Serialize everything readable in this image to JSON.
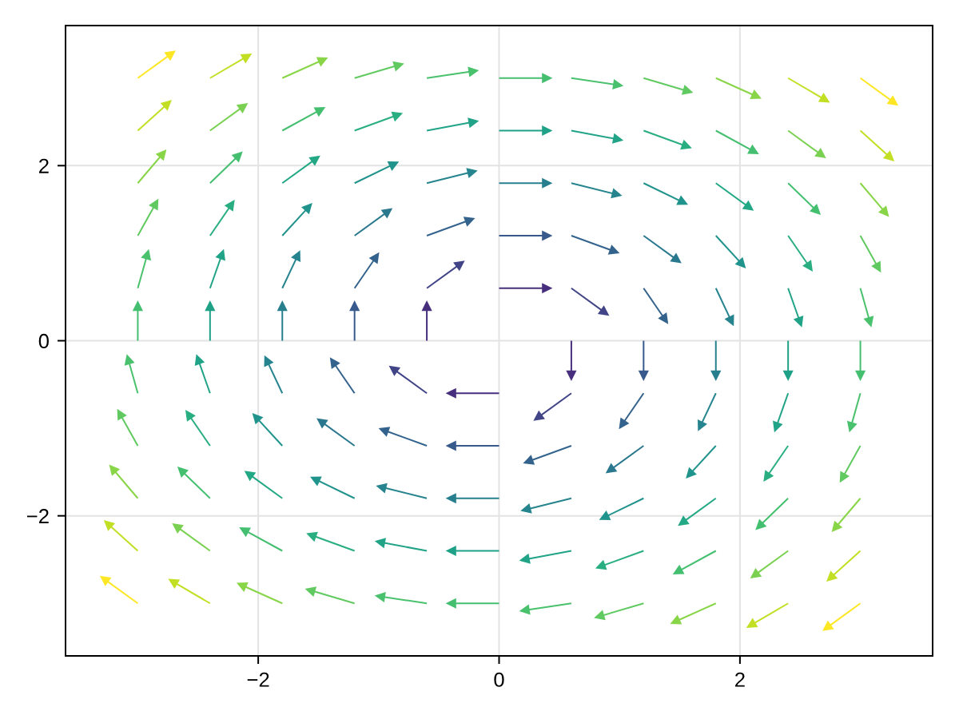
{
  "chart_data": {
    "type": "line",
    "xlim": [
      -3.6,
      3.6
    ],
    "ylim": [
      -3.6,
      3.6
    ],
    "xticks": [
      {
        "value": -2,
        "label": "−2"
      },
      0,
      2
    ],
    "yticks": [
      {
        "value": -2,
        "label": "−2"
      },
      0,
      2
    ],
    "grid": true,
    "marker": "triangle",
    "series": [
      {
        "x": [
          -3,
          -2.72
        ],
        "values": [
          3,
          3.28
        ],
        "color": "#fde725"
      },
      {
        "x": [
          -2.4,
          -2.09
        ],
        "values": [
          3,
          3.25
        ],
        "color": "#c2df23"
      },
      {
        "x": [
          -1.8,
          -1.46
        ],
        "values": [
          3,
          3.21
        ],
        "color": "#89d548"
      },
      {
        "x": [
          -1.2,
          -0.83
        ],
        "values": [
          3,
          3.15
        ],
        "color": "#60ca60"
      },
      {
        "x": [
          -0.6,
          -0.21
        ],
        "values": [
          3,
          3.08
        ],
        "color": "#4ac16d"
      },
      {
        "x": [
          0,
          0.4
        ],
        "values": [
          3,
          3
        ],
        "color": "#44bf70"
      },
      {
        "x": [
          0.6,
          0.99
        ],
        "values": [
          3,
          2.92
        ],
        "color": "#4ac16d"
      },
      {
        "x": [
          1.2,
          1.57
        ],
        "values": [
          3,
          2.85
        ],
        "color": "#60ca60"
      },
      {
        "x": [
          1.8,
          2.14
        ],
        "values": [
          3,
          2.79
        ],
        "color": "#89d548"
      },
      {
        "x": [
          2.4,
          2.71
        ],
        "values": [
          3,
          2.75
        ],
        "color": "#c2df23"
      },
      {
        "x": [
          3,
          3.28
        ],
        "values": [
          3,
          2.72
        ],
        "color": "#fde725"
      },
      {
        "x": [
          -3,
          -2.75
        ],
        "values": [
          2.4,
          2.71
        ],
        "color": "#c2df23"
      },
      {
        "x": [
          -2.4,
          -2.12
        ],
        "values": [
          2.4,
          2.68
        ],
        "color": "#7ad151"
      },
      {
        "x": [
          -1.8,
          -1.48
        ],
        "values": [
          2.4,
          2.64
        ],
        "color": "#44bf70"
      },
      {
        "x": [
          -1.2,
          -0.84
        ],
        "values": [
          2.4,
          2.58
        ],
        "color": "#28ae80"
      },
      {
        "x": [
          -0.6,
          -0.21
        ],
        "values": [
          2.4,
          2.5
        ],
        "color": "#20a386"
      },
      {
        "x": [
          0,
          0.4
        ],
        "values": [
          2.4,
          2.4
        ],
        "color": "#1fa187"
      },
      {
        "x": [
          0.6,
          0.99
        ],
        "values": [
          2.4,
          2.3
        ],
        "color": "#20a386"
      },
      {
        "x": [
          1.2,
          1.56
        ],
        "values": [
          2.4,
          2.22
        ],
        "color": "#28ae80"
      },
      {
        "x": [
          1.8,
          2.12
        ],
        "values": [
          2.4,
          2.16
        ],
        "color": "#44bf70"
      },
      {
        "x": [
          2.4,
          2.68
        ],
        "values": [
          2.4,
          2.12
        ],
        "color": "#7ad151"
      },
      {
        "x": [
          3,
          3.25
        ],
        "values": [
          2.4,
          2.09
        ],
        "color": "#c2df23"
      },
      {
        "x": [
          -3,
          -2.79
        ],
        "values": [
          1.8,
          2.14
        ],
        "color": "#89d548"
      },
      {
        "x": [
          -2.4,
          -2.16
        ],
        "values": [
          1.8,
          2.12
        ],
        "color": "#44bf70"
      },
      {
        "x": [
          -1.8,
          -1.52
        ],
        "values": [
          1.8,
          2.08
        ],
        "color": "#22a884"
      },
      {
        "x": [
          -1.2,
          -0.87
        ],
        "values": [
          1.8,
          2.02
        ],
        "color": "#20938c"
      },
      {
        "x": [
          -0.6,
          -0.22
        ],
        "values": [
          1.8,
          1.93
        ],
        "color": "#25848e"
      },
      {
        "x": [
          0,
          0.4
        ],
        "values": [
          1.8,
          1.8
        ],
        "color": "#277f8e"
      },
      {
        "x": [
          0.6,
          0.98
        ],
        "values": [
          1.8,
          1.67
        ],
        "color": "#25848e"
      },
      {
        "x": [
          1.2,
          1.53
        ],
        "values": [
          1.8,
          1.58
        ],
        "color": "#20938c"
      },
      {
        "x": [
          1.8,
          2.08
        ],
        "values": [
          1.8,
          1.52
        ],
        "color": "#22a884"
      },
      {
        "x": [
          2.4,
          2.64
        ],
        "values": [
          1.8,
          1.48
        ],
        "color": "#44bf70"
      },
      {
        "x": [
          3,
          3.21
        ],
        "values": [
          1.8,
          1.46
        ],
        "color": "#89d548"
      },
      {
        "x": [
          -3,
          -2.85
        ],
        "values": [
          1.2,
          1.57
        ],
        "color": "#60ca60"
      },
      {
        "x": [
          -2.4,
          -2.22
        ],
        "values": [
          1.2,
          1.56
        ],
        "color": "#28ae80"
      },
      {
        "x": [
          -1.8,
          -1.58
        ],
        "values": [
          1.2,
          1.53
        ],
        "color": "#20938c"
      },
      {
        "x": [
          -1.2,
          -0.92
        ],
        "values": [
          1.2,
          1.48
        ],
        "color": "#2a788e"
      },
      {
        "x": [
          -0.6,
          -0.24
        ],
        "values": [
          1.2,
          1.38
        ],
        "color": "#33638d"
      },
      {
        "x": [
          0,
          0.4
        ],
        "values": [
          1.2,
          1.2
        ],
        "color": "#38598c"
      },
      {
        "x": [
          0.6,
          0.96
        ],
        "values": [
          1.2,
          1.02
        ],
        "color": "#33638d"
      },
      {
        "x": [
          1.2,
          1.48
        ],
        "values": [
          1.2,
          0.92
        ],
        "color": "#2a788e"
      },
      {
        "x": [
          1.8,
          2.02
        ],
        "values": [
          1.2,
          0.87
        ],
        "color": "#20938c"
      },
      {
        "x": [
          2.4,
          2.58
        ],
        "values": [
          1.2,
          0.84
        ],
        "color": "#28ae80"
      },
      {
        "x": [
          3,
          3.15
        ],
        "values": [
          1.2,
          0.83
        ],
        "color": "#60ca60"
      },
      {
        "x": [
          -3,
          -2.92
        ],
        "values": [
          0.6,
          0.99
        ],
        "color": "#4ac16d"
      },
      {
        "x": [
          -2.4,
          -2.3
        ],
        "values": [
          0.6,
          0.99
        ],
        "color": "#20a386"
      },
      {
        "x": [
          -1.8,
          -1.67
        ],
        "values": [
          0.6,
          0.98
        ],
        "color": "#25848e"
      },
      {
        "x": [
          -1.2,
          -1.02
        ],
        "values": [
          0.6,
          0.96
        ],
        "color": "#33638d"
      },
      {
        "x": [
          -0.6,
          -0.32
        ],
        "values": [
          0.6,
          0.88
        ],
        "color": "#414487"
      },
      {
        "x": [
          0,
          0.4
        ],
        "values": [
          0.6,
          0.6
        ],
        "color": "#472f7d"
      },
      {
        "x": [
          0.6,
          0.88
        ],
        "values": [
          0.6,
          0.32
        ],
        "color": "#414487"
      },
      {
        "x": [
          1.2,
          1.38
        ],
        "values": [
          0.6,
          0.24
        ],
        "color": "#33638d"
      },
      {
        "x": [
          1.8,
          1.93
        ],
        "values": [
          0.6,
          0.22
        ],
        "color": "#25848e"
      },
      {
        "x": [
          2.4,
          2.5
        ],
        "values": [
          0.6,
          0.21
        ],
        "color": "#20a386"
      },
      {
        "x": [
          3,
          3.08
        ],
        "values": [
          0.6,
          0.21
        ],
        "color": "#4ac16d"
      },
      {
        "x": [
          -3,
          -3
        ],
        "values": [
          0,
          0.4
        ],
        "color": "#44bf70"
      },
      {
        "x": [
          -2.4,
          -2.4
        ],
        "values": [
          0,
          0.4
        ],
        "color": "#1fa187"
      },
      {
        "x": [
          -1.8,
          -1.8
        ],
        "values": [
          0,
          0.4
        ],
        "color": "#277f8e"
      },
      {
        "x": [
          -1.2,
          -1.2
        ],
        "values": [
          0,
          0.4
        ],
        "color": "#38598c"
      },
      {
        "x": [
          -0.6,
          -0.6
        ],
        "values": [
          0,
          0.4
        ],
        "color": "#472f7d"
      },
      {
        "x": [
          0.6,
          0.6
        ],
        "values": [
          0,
          -0.4
        ],
        "color": "#472f7d"
      },
      {
        "x": [
          1.2,
          1.2
        ],
        "values": [
          0,
          -0.4
        ],
        "color": "#38598c"
      },
      {
        "x": [
          1.8,
          1.8
        ],
        "values": [
          0,
          -0.4
        ],
        "color": "#277f8e"
      },
      {
        "x": [
          2.4,
          2.4
        ],
        "values": [
          0,
          -0.4
        ],
        "color": "#1fa187"
      },
      {
        "x": [
          3,
          3
        ],
        "values": [
          0,
          -0.4
        ],
        "color": "#44bf70"
      },
      {
        "x": [
          -3,
          -3.08
        ],
        "values": [
          -0.6,
          -0.21
        ],
        "color": "#4ac16d"
      },
      {
        "x": [
          -2.4,
          -2.5
        ],
        "values": [
          -0.6,
          -0.21
        ],
        "color": "#20a386"
      },
      {
        "x": [
          -1.8,
          -1.93
        ],
        "values": [
          -0.6,
          -0.22
        ],
        "color": "#25848e"
      },
      {
        "x": [
          -1.2,
          -1.38
        ],
        "values": [
          -0.6,
          -0.24
        ],
        "color": "#33638d"
      },
      {
        "x": [
          -0.6,
          -0.88
        ],
        "values": [
          -0.6,
          -0.32
        ],
        "color": "#414487"
      },
      {
        "x": [
          0,
          -0.4
        ],
        "values": [
          -0.6,
          -0.6
        ],
        "color": "#472f7d"
      },
      {
        "x": [
          0.6,
          0.32
        ],
        "values": [
          -0.6,
          -0.88
        ],
        "color": "#414487"
      },
      {
        "x": [
          1.2,
          1.02
        ],
        "values": [
          -0.6,
          -0.96
        ],
        "color": "#33638d"
      },
      {
        "x": [
          1.8,
          1.67
        ],
        "values": [
          -0.6,
          -0.98
        ],
        "color": "#25848e"
      },
      {
        "x": [
          2.4,
          2.3
        ],
        "values": [
          -0.6,
          -0.99
        ],
        "color": "#20a386"
      },
      {
        "x": [
          3,
          2.92
        ],
        "values": [
          -0.6,
          -0.99
        ],
        "color": "#4ac16d"
      },
      {
        "x": [
          -3,
          -3.15
        ],
        "values": [
          -1.2,
          -0.83
        ],
        "color": "#60ca60"
      },
      {
        "x": [
          -2.4,
          -2.58
        ],
        "values": [
          -1.2,
          -0.84
        ],
        "color": "#28ae80"
      },
      {
        "x": [
          -1.8,
          -2.02
        ],
        "values": [
          -1.2,
          -0.87
        ],
        "color": "#20938c"
      },
      {
        "x": [
          -1.2,
          -1.48
        ],
        "values": [
          -1.2,
          -0.92
        ],
        "color": "#2a788e"
      },
      {
        "x": [
          -0.6,
          -0.96
        ],
        "values": [
          -1.2,
          -1.02
        ],
        "color": "#33638d"
      },
      {
        "x": [
          0,
          -0.4
        ],
        "values": [
          -1.2,
          -1.2
        ],
        "color": "#38598c"
      },
      {
        "x": [
          0.6,
          0.24
        ],
        "values": [
          -1.2,
          -1.38
        ],
        "color": "#33638d"
      },
      {
        "x": [
          1.2,
          0.92
        ],
        "values": [
          -1.2,
          -1.48
        ],
        "color": "#2a788e"
      },
      {
        "x": [
          1.8,
          1.58
        ],
        "values": [
          -1.2,
          -1.53
        ],
        "color": "#20938c"
      },
      {
        "x": [
          2.4,
          2.22
        ],
        "values": [
          -1.2,
          -1.56
        ],
        "color": "#28ae80"
      },
      {
        "x": [
          3,
          2.85
        ],
        "values": [
          -1.2,
          -1.57
        ],
        "color": "#60ca60"
      },
      {
        "x": [
          -3,
          -3.21
        ],
        "values": [
          -1.8,
          -1.46
        ],
        "color": "#89d548"
      },
      {
        "x": [
          -2.4,
          -2.64
        ],
        "values": [
          -1.8,
          -1.48
        ],
        "color": "#44bf70"
      },
      {
        "x": [
          -1.8,
          -2.08
        ],
        "values": [
          -1.8,
          -1.52
        ],
        "color": "#22a884"
      },
      {
        "x": [
          -1.2,
          -1.53
        ],
        "values": [
          -1.8,
          -1.58
        ],
        "color": "#20938c"
      },
      {
        "x": [
          -0.6,
          -0.98
        ],
        "values": [
          -1.8,
          -1.67
        ],
        "color": "#25848e"
      },
      {
        "x": [
          0,
          -0.4
        ],
        "values": [
          -1.8,
          -1.8
        ],
        "color": "#277f8e"
      },
      {
        "x": [
          0.6,
          0.22
        ],
        "values": [
          -1.8,
          -1.93
        ],
        "color": "#25848e"
      },
      {
        "x": [
          1.2,
          0.87
        ],
        "values": [
          -1.8,
          -2.02
        ],
        "color": "#20938c"
      },
      {
        "x": [
          1.8,
          1.52
        ],
        "values": [
          -1.8,
          -2.08
        ],
        "color": "#22a884"
      },
      {
        "x": [
          2.4,
          2.16
        ],
        "values": [
          -1.8,
          -2.12
        ],
        "color": "#44bf70"
      },
      {
        "x": [
          3,
          2.79
        ],
        "values": [
          -1.8,
          -2.14
        ],
        "color": "#89d548"
      },
      {
        "x": [
          -3,
          -3.25
        ],
        "values": [
          -2.4,
          -2.09
        ],
        "color": "#c2df23"
      },
      {
        "x": [
          -2.4,
          -2.68
        ],
        "values": [
          -2.4,
          -2.12
        ],
        "color": "#7ad151"
      },
      {
        "x": [
          -1.8,
          -2.12
        ],
        "values": [
          -2.4,
          -2.16
        ],
        "color": "#44bf70"
      },
      {
        "x": [
          -1.2,
          -1.56
        ],
        "values": [
          -2.4,
          -2.22
        ],
        "color": "#28ae80"
      },
      {
        "x": [
          -0.6,
          -0.99
        ],
        "values": [
          -2.4,
          -2.3
        ],
        "color": "#20a386"
      },
      {
        "x": [
          0,
          -0.4
        ],
        "values": [
          -2.4,
          -2.4
        ],
        "color": "#1fa187"
      },
      {
        "x": [
          0.6,
          0.21
        ],
        "values": [
          -2.4,
          -2.5
        ],
        "color": "#20a386"
      },
      {
        "x": [
          1.2,
          0.84
        ],
        "values": [
          -2.4,
          -2.58
        ],
        "color": "#28ae80"
      },
      {
        "x": [
          1.8,
          1.48
        ],
        "values": [
          -2.4,
          -2.64
        ],
        "color": "#44bf70"
      },
      {
        "x": [
          2.4,
          2.12
        ],
        "values": [
          -2.4,
          -2.68
        ],
        "color": "#7ad151"
      },
      {
        "x": [
          3,
          2.75
        ],
        "values": [
          -2.4,
          -2.71
        ],
        "color": "#c2df23"
      },
      {
        "x": [
          -3,
          -3.28
        ],
        "values": [
          -3,
          -2.72
        ],
        "color": "#fde725"
      },
      {
        "x": [
          -2.4,
          -2.71
        ],
        "values": [
          -3,
          -2.75
        ],
        "color": "#c2df23"
      },
      {
        "x": [
          -1.8,
          -2.14
        ],
        "values": [
          -3,
          -2.79
        ],
        "color": "#89d548"
      },
      {
        "x": [
          -1.2,
          -1.57
        ],
        "values": [
          -3,
          -2.85
        ],
        "color": "#60ca60"
      },
      {
        "x": [
          -0.6,
          -0.99
        ],
        "values": [
          -3,
          -2.92
        ],
        "color": "#4ac16d"
      },
      {
        "x": [
          0,
          -0.4
        ],
        "values": [
          -3,
          -3
        ],
        "color": "#44bf70"
      },
      {
        "x": [
          0.6,
          0.21
        ],
        "values": [
          -3,
          -3.08
        ],
        "color": "#4ac16d"
      },
      {
        "x": [
          1.2,
          0.83
        ],
        "values": [
          -3,
          -3.15
        ],
        "color": "#60ca60"
      },
      {
        "x": [
          1.8,
          1.46
        ],
        "values": [
          -3,
          -3.21
        ],
        "color": "#89d548"
      },
      {
        "x": [
          2.4,
          2.09
        ],
        "values": [
          -3,
          -3.25
        ],
        "color": "#c2df23"
      },
      {
        "x": [
          3,
          2.72
        ],
        "values": [
          -3,
          -3.28
        ],
        "color": "#fde725"
      }
    ]
  }
}
